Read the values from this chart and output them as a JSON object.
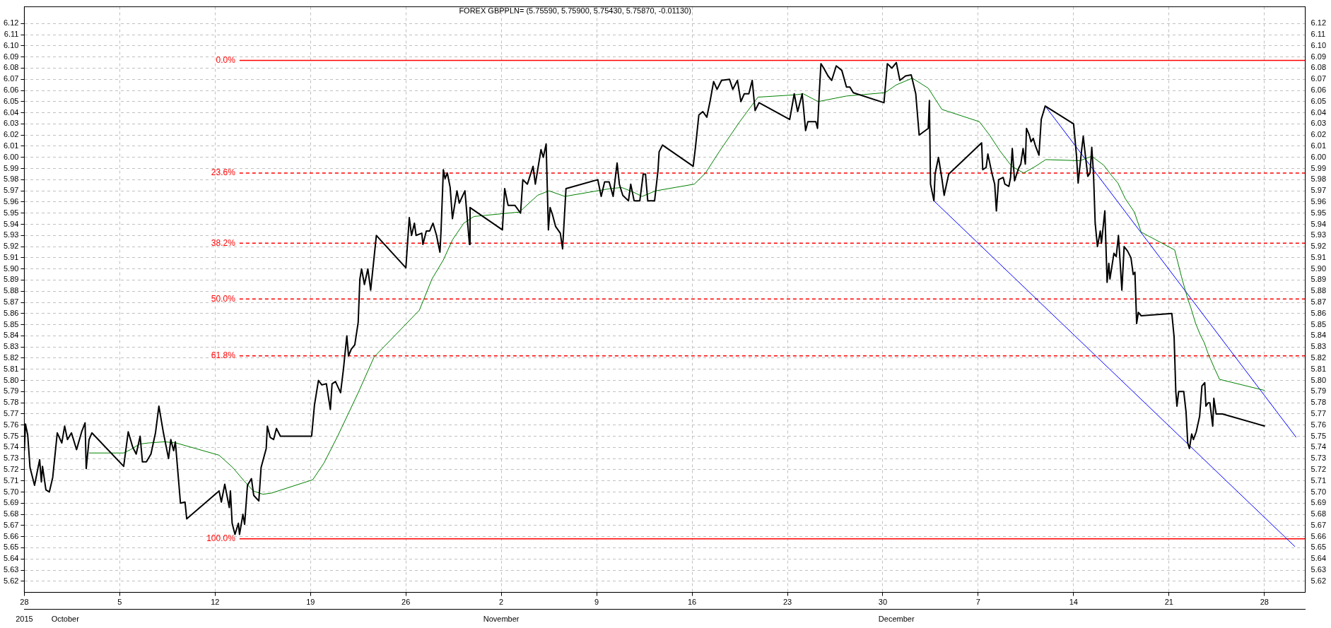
{
  "chart_data": {
    "type": "line",
    "title": "FOREX GBPPLN= (5.75590, 5.75900, 5.75430, 5.75870, -0.01130)",
    "series": [
      {
        "color": "#000000",
        "x": [
          "2015-09-28T00:00",
          "2015-09-28T02:00",
          "2015-09-28T06:00",
          "2015-09-28T10:00",
          "2015-09-28T18:00",
          "2015-09-29T03:00",
          "2015-09-29T06:00",
          "2015-09-29T08:00",
          "2015-09-29T14:00",
          "2015-09-29T20:00",
          "2015-09-30T02:00",
          "2015-09-30T10:00",
          "2015-09-30T18:00",
          "2015-09-30T23:00",
          "2015-10-01T04:00",
          "2015-10-01T11:00",
          "2015-10-01T20:00",
          "2015-10-02T05:00",
          "2015-10-02T11:00",
          "2015-10-02T13:00",
          "2015-10-02T18:00",
          "2015-10-02T23:00",
          "2015-10-05T07:00",
          "2015-10-05T15:00",
          "2015-10-05T23:00",
          "2015-10-06T05:00",
          "2015-10-06T12:00",
          "2015-10-06T16:00",
          "2015-10-06T23:00",
          "2015-10-07T07:00",
          "2015-10-07T15:00",
          "2015-10-07T21:00",
          "2015-10-08T05:00",
          "2015-10-08T14:00",
          "2015-10-08T18:00",
          "2015-10-08T23:00",
          "2015-10-09T02:00",
          "2015-10-09T11:00",
          "2015-10-09T19:00",
          "2015-10-09T22:00",
          "2015-10-12T07:00",
          "2015-10-12T11:00",
          "2015-10-12T17:00",
          "2015-10-13T01:00",
          "2015-10-13T03:00",
          "2015-10-13T06:00",
          "2015-10-13T11:00",
          "2015-10-13T17:00",
          "2015-10-13T19:00",
          "2015-10-14T01:00",
          "2015-10-14T04:00",
          "2015-10-14T09:00",
          "2015-10-14T16:00",
          "2015-10-14T20:00",
          "2015-10-15T05:00",
          "2015-10-15T09:00",
          "2015-10-15T18:00",
          "2015-10-15T20:00",
          "2015-10-16T01:00",
          "2015-10-16T07:00",
          "2015-10-16T12:00",
          "2015-10-16T19:00",
          "2015-10-19T02:00",
          "2015-10-19T07:00",
          "2015-10-19T14:00",
          "2015-10-19T20:00",
          "2015-10-20T04:00",
          "2015-10-20T11:00",
          "2015-10-20T14:00",
          "2015-10-20T20:00",
          "2015-10-21T05:00",
          "2015-10-21T10:00",
          "2015-10-21T16:00",
          "2015-10-21T19:00",
          "2015-10-21T23:45",
          "2015-10-22T06:00",
          "2015-10-22T12:00",
          "2015-10-22T15:00",
          "2015-10-22T18:00",
          "2015-10-22T23:00",
          "2015-10-23T05:00",
          "2015-10-23T10:00",
          "2015-10-23T20:00",
          "2015-10-26T00:00",
          "2015-10-26T06:00",
          "2015-10-26T10:00",
          "2015-10-26T15:00",
          "2015-10-26T18:00",
          "2015-10-27T04:00",
          "2015-10-27T06:00",
          "2015-10-27T12:00",
          "2015-10-27T18:00",
          "2015-10-27T23:45",
          "2015-10-28T06:00",
          "2015-10-28T12:00",
          "2015-10-28T14:00",
          "2015-10-28T18:00",
          "2015-10-28T21:00",
          "2015-10-29T01:00",
          "2015-10-29T06:00",
          "2015-10-29T10:00",
          "2015-10-29T18:00",
          "2015-10-29T22:00",
          "2015-10-30T08:00",
          "2015-10-30T16:00",
          "2015-10-30T17:00",
          "2015-11-02T02:00",
          "2015-11-02T06:00",
          "2015-11-02T12:00",
          "2015-11-03T00:00",
          "2015-11-03T10:00",
          "2015-11-03T14:00",
          "2015-11-03T22:00",
          "2015-11-04T08:00",
          "2015-11-04T12:00",
          "2015-11-04T22:00",
          "2015-11-05T02:00",
          "2015-11-05T07:00",
          "2015-11-05T11:00",
          "2015-11-05T14:00",
          "2015-11-05T18:00",
          "2015-11-05T23:45",
          "2015-11-06T08:00",
          "2015-11-06T12:00",
          "2015-11-06T18:00",
          "2015-11-09T02:00",
          "2015-11-09T08:00",
          "2015-11-09T14:00",
          "2015-11-09T22:00",
          "2015-11-10T05:00",
          "2015-11-10T12:00",
          "2015-11-10T16:00",
          "2015-11-10T22:00",
          "2015-11-11T08:00",
          "2015-11-11T12:00",
          "2015-11-11T18:00",
          "2015-11-12T04:00",
          "2015-11-12T10:00",
          "2015-11-12T14:00",
          "2015-11-12T18:00",
          "2015-11-13T06:00",
          "2015-11-13T12:00",
          "2015-11-13T14:00",
          "2015-11-13T20:00",
          "2015-11-16T02:00",
          "2015-11-16T06:00",
          "2015-11-16T12:00",
          "2015-11-16T19:00",
          "2015-11-17T02:00",
          "2015-11-17T08:00",
          "2015-11-17T14:00",
          "2015-11-17T20:00",
          "2015-11-18T04:00",
          "2015-11-18T18:00",
          "2015-11-18T23:45",
          "2015-11-19T08:00",
          "2015-11-19T14:00",
          "2015-11-19T20:00",
          "2015-11-20T04:00",
          "2015-11-20T10:00",
          "2015-11-20T15:00",
          "2015-11-20T22:00",
          "2015-11-23T04:00",
          "2015-11-23T12:00",
          "2015-11-23T18:00",
          "2015-11-24T02:00",
          "2015-11-24T08:00",
          "2015-11-24T12:00",
          "2015-11-25T02:00",
          "2015-11-25T05:00",
          "2015-11-25T08:00",
          "2015-11-25T11:00",
          "2015-11-25T16:00",
          "2015-11-25T23:30",
          "2015-11-26T06:00",
          "2015-11-26T14:00",
          "2015-11-26T23:45",
          "2015-11-27T08:00",
          "2015-11-27T14:00",
          "2015-11-27T20:00",
          "2015-11-30T02:00",
          "2015-11-30T08:00",
          "2015-11-30T16:00",
          "2015-11-30T23:45",
          "2015-12-01T06:00",
          "2015-12-01T16:00",
          "2015-12-02T02:00",
          "2015-12-02T10:00",
          "2015-12-02T16:00",
          "2015-12-03T08:00",
          "2015-12-03T10:00",
          "2015-12-03T12:00",
          "2015-12-03T18:00",
          "2015-12-03T20:00",
          "2015-12-04T02:00",
          "2015-12-04T08:00",
          "2015-12-04T12:00",
          "2015-12-04T20:00",
          "2015-12-07T06:00",
          "2015-12-07T08:00",
          "2015-12-07T14:00",
          "2015-12-07T17:00",
          "2015-12-08T00:00",
          "2015-12-08T05:00",
          "2015-12-08T08:00",
          "2015-12-08T12:00",
          "2015-12-08T20:00",
          "2015-12-08T23:00",
          "2015-12-09T06:00",
          "2015-12-09T09:00",
          "2015-12-09T12:00",
          "2015-12-09T16:00",
          "2015-12-09T23:00",
          "2015-12-10T03:00",
          "2015-12-10T07:00",
          "2015-12-10T11:00",
          "2015-12-10T13:00",
          "2015-12-10T18:00",
          "2015-12-10T21:00",
          "2015-12-11T01:00",
          "2015-12-11T05:00",
          "2015-12-11T11:00",
          "2015-12-11T15:00",
          "2015-12-11T22:00",
          "2015-12-14T00:00",
          "2015-12-14T05:00",
          "2015-12-14T08:00",
          "2015-12-14T14:00",
          "2015-12-14T17:00",
          "2015-12-14T20:00",
          "2015-12-15T01:00",
          "2015-12-15T05:00",
          "2015-12-15T08:00",
          "2015-12-15T11:00",
          "2015-12-15T14:00",
          "2015-12-15T18:00",
          "2015-12-15T23:00",
          "2015-12-16T01:00",
          "2015-12-16T07:00",
          "2015-12-16T11:00",
          "2015-12-16T14:00",
          "2015-12-16T16:00",
          "2015-12-16T23:00",
          "2015-12-17T03:00",
          "2015-12-17T07:00",
          "2015-12-17T13:00",
          "2015-12-17T17:00",
          "2015-12-17T23:00",
          "2015-12-18T05:00",
          "2015-12-18T09:00",
          "2015-12-18T12:00",
          "2015-12-18T14:00",
          "2015-12-18T15:00",
          "2015-12-18T18:00",
          "2015-12-18T23:00",
          "2015-12-21T05:00",
          "2015-12-21T09:00",
          "2015-12-21T12:00",
          "2015-12-21T14:00",
          "2015-12-21T17:00",
          "2015-12-22T02:00",
          "2015-12-22T06:00",
          "2015-12-22T09:00",
          "2015-12-22T12:00",
          "2015-12-22T16:00",
          "2015-12-22T19:00",
          "2015-12-23T00:00",
          "2015-12-23T06:00",
          "2015-12-23T10:00",
          "2015-12-23T15:00",
          "2015-12-23T17:00",
          "2015-12-23T21:00",
          "2015-12-24T00:00",
          "2015-12-24T05:00",
          "2015-12-24T07:00",
          "2015-12-24T11:00",
          "2015-12-24T22:00",
          "2015-12-28T01:00"
        ],
        "values": [
          5.737,
          5.761,
          5.751,
          5.722,
          5.706,
          5.729,
          5.709,
          5.723,
          5.702,
          5.7,
          5.713,
          5.753,
          5.744,
          5.759,
          5.747,
          5.753,
          5.738,
          5.754,
          5.762,
          5.721,
          5.747,
          5.753,
          5.723,
          5.754,
          5.74,
          5.734,
          5.75,
          5.727,
          5.727,
          5.734,
          5.753,
          5.777,
          5.753,
          5.73,
          5.747,
          5.737,
          5.745,
          5.69,
          5.691,
          5.676,
          5.701,
          5.691,
          5.707,
          5.686,
          5.701,
          5.672,
          5.662,
          5.672,
          5.662,
          5.68,
          5.671,
          5.706,
          5.712,
          5.697,
          5.692,
          5.722,
          5.739,
          5.759,
          5.749,
          5.747,
          5.757,
          5.75,
          5.75,
          5.778,
          5.8,
          5.796,
          5.797,
          5.774,
          5.797,
          5.799,
          5.789,
          5.81,
          5.84,
          5.822,
          5.828,
          5.832,
          5.852,
          5.891,
          5.9,
          5.886,
          5.9,
          5.881,
          5.93,
          5.901,
          5.946,
          5.93,
          5.941,
          5.93,
          5.932,
          5.922,
          5.934,
          5.934,
          5.941,
          5.93,
          5.915,
          5.935,
          5.989,
          5.981,
          5.986,
          5.973,
          5.945,
          5.97,
          5.959,
          5.97,
          5.922,
          5.955,
          5.935,
          5.972,
          5.957,
          5.957,
          5.95,
          5.98,
          5.976,
          5.992,
          5.976,
          6.007,
          6,
          6.012,
          5.935,
          5.955,
          5.949,
          5.938,
          5.932,
          5.918,
          5.972,
          5.98,
          5.965,
          5.978,
          5.978,
          5.965,
          5.995,
          5.976,
          5.966,
          5.961,
          5.976,
          5.961,
          5.961,
          5.985,
          5.985,
          5.961,
          5.961,
          5.988,
          6.005,
          6.011,
          5.992,
          6.009,
          6.038,
          6.041,
          6.036,
          6.051,
          6.068,
          6.061,
          6.069,
          6.07,
          6.061,
          6.069,
          6.05,
          6.057,
          6.057,
          6.069,
          6.042,
          6.049,
          6.034,
          6.057,
          6.041,
          6.057,
          6.024,
          6.032,
          6.032,
          6.026,
          6.057,
          6.084,
          6.08,
          6.073,
          6.069,
          6.082,
          6.078,
          6.063,
          6.063,
          6.058,
          6.049,
          6.084,
          6.08,
          6.085,
          6.069,
          6.073,
          6.074,
          6.057,
          6.02,
          6.026,
          6.051,
          5.976,
          5.961,
          5.985,
          6,
          5.981,
          5.966,
          5.985,
          6.013,
          5.989,
          5.991,
          6.003,
          5.986,
          5.976,
          5.952,
          5.98,
          5.982,
          5.976,
          5.974,
          5.982,
          6.008,
          5.979,
          5.99,
          5.994,
          6.008,
          5.994,
          6.026,
          6.02,
          6.014,
          6.017,
          6.01,
          6.002,
          6.034,
          6.046,
          6.03,
          6.002,
          5.977,
          6.006,
          6.019,
          6.005,
          5.983,
          5.986,
          6.009,
          5.986,
          5.941,
          5.92,
          5.934,
          5.923,
          5.952,
          5.888,
          5.905,
          5.891,
          5.914,
          5.911,
          5.93,
          5.881,
          5.92,
          5.916,
          5.91,
          5.895,
          5.897,
          5.867,
          5.851,
          5.861,
          5.858,
          5.86,
          5.839,
          5.79,
          5.777,
          5.79,
          5.79,
          5.772,
          5.744,
          5.739,
          5.752,
          5.747,
          5.754,
          5.768,
          5.795,
          5.798,
          5.777,
          5.78,
          5.78,
          5.759,
          5.784,
          5.77,
          5.77,
          5.759
        ]
      },
      {
        "color": "#008000",
        "x": [
          "2015-10-02T18:00",
          "2015-10-05T07:00",
          "2015-10-05T19:00",
          "2015-10-06T11:00",
          "2015-10-07T03:00",
          "2015-10-08T07:00",
          "2015-10-09T03:00",
          "2015-10-12T07:00",
          "2015-10-13T07:00",
          "2015-10-14T03:00",
          "2015-10-14T19:00",
          "2015-10-15T12:00",
          "2015-10-16T03:00",
          "2015-10-19T04:00",
          "2015-10-19T23:45",
          "2015-10-20T23:45",
          "2015-10-22T12:00",
          "2015-10-23T16:00",
          "2015-10-26T23:45",
          "2015-10-27T22:00",
          "2015-10-28T18:00",
          "2015-10-29T10:00",
          "2015-10-30T06:00",
          "2015-10-30T23:45",
          "2015-11-03T08:00",
          "2015-11-04T16:00",
          "2015-11-05T12:00",
          "2015-11-06T16:00",
          "2015-11-09T23:45",
          "2015-11-10T20:00",
          "2015-11-11T16:00",
          "2015-11-12T08:00",
          "2015-11-13T08:00",
          "2015-11-16T04:00",
          "2015-11-16T23:45",
          "2015-11-17T23:45",
          "2015-11-19T12:00",
          "2015-11-20T20:00",
          "2015-11-23T12:00",
          "2015-11-24T04:00",
          "2015-11-25T06:00",
          "2015-11-26T12:00",
          "2015-11-27T08:00",
          "2015-11-30T04:00",
          "2015-11-30T23:45",
          "2015-12-02T04:00",
          "2015-12-03T08:00",
          "2015-12-04T08:00",
          "2015-12-07T02:00",
          "2015-12-07T20:00",
          "2015-12-08T14:00",
          "2015-12-09T11:00",
          "2015-12-10T08:00",
          "2015-12-11T05:00",
          "2015-12-11T23:00",
          "2015-12-14T11:00",
          "2015-12-15T08:00",
          "2015-12-16T05:00",
          "2015-12-16T20:00",
          "2015-12-17T06:00",
          "2015-12-17T19:00",
          "2015-12-18T11:00",
          "2015-12-18T23:00",
          "2015-12-21T10:00",
          "2015-12-21T22:00",
          "2015-12-22T09:00",
          "2015-12-22T14:00",
          "2015-12-22T23:00",
          "2015-12-23T07:00",
          "2015-12-23T14:00",
          "2015-12-23T21:00",
          "2015-12-24T08:00",
          "2015-12-24T17:00",
          "2015-12-28T01:00"
        ],
        "values": [
          5.735,
          5.735,
          5.738,
          5.743,
          5.744,
          5.745,
          5.744,
          5.733,
          5.722,
          5.71,
          5.701,
          5.698,
          5.699,
          5.711,
          5.726,
          5.75,
          5.789,
          5.821,
          5.863,
          5.891,
          5.908,
          5.926,
          5.941,
          5.947,
          5.951,
          5.966,
          5.97,
          5.965,
          5.972,
          5.973,
          5.969,
          5.965,
          5.97,
          5.976,
          5.986,
          6.005,
          6.032,
          6.054,
          6.056,
          6.057,
          6.05,
          6.053,
          6.055,
          6.058,
          6.065,
          6.071,
          6.062,
          6.043,
          6.032,
          6.02,
          6.006,
          5.992,
          5.986,
          5.992,
          5.998,
          5.997,
          6.001,
          5.993,
          5.983,
          5.977,
          5.963,
          5.951,
          5.933,
          5.917,
          5.893,
          5.873,
          5.866,
          5.851,
          5.841,
          5.834,
          5.824,
          5.811,
          5.801,
          5.791
        ]
      },
      {
        "color": "#0000ff",
        "x": [
          "2015-12-11T22:00",
          "2015-12-30T08:00"
        ],
        "values": [
          6.046,
          5.749
        ]
      },
      {
        "color": "#0000ff",
        "x": [
          "2015-12-03T18:00",
          "2015-12-30T06:00"
        ],
        "values": [
          5.961,
          5.651
        ]
      }
    ],
    "xlim": [
      "2015-09-28",
      "2015-12-31"
    ],
    "xticks": [
      {
        "value": "2015-09-28",
        "label": "28"
      },
      {
        "value": "2015-10-05",
        "label": "5"
      },
      {
        "value": "2015-10-12",
        "label": "12"
      },
      {
        "value": "2015-10-19",
        "label": "19"
      },
      {
        "value": "2015-10-26",
        "label": "26"
      },
      {
        "value": "2015-11-02",
        "label": "2"
      },
      {
        "value": "2015-11-09",
        "label": "9"
      },
      {
        "value": "2015-11-16",
        "label": "16"
      },
      {
        "value": "2015-11-23",
        "label": "23"
      },
      {
        "value": "2015-11-30",
        "label": "30"
      },
      {
        "value": "2015-12-07",
        "label": "7"
      },
      {
        "value": "2015-12-14",
        "label": "14"
      },
      {
        "value": "2015-12-21",
        "label": "21"
      },
      {
        "value": "2015-12-28",
        "label": "28"
      }
    ],
    "x2lim": [
      "2015-09-28",
      "2015-12-31"
    ],
    "x2ticks": [
      {
        "value": "2015-09-28",
        "label": "2015"
      },
      {
        "value": "2015-10-01",
        "label": "October"
      },
      {
        "value": "2015-11-02",
        "label": "November"
      },
      {
        "value": "2015-12-01",
        "label": "December"
      }
    ],
    "ylim": [
      5.61,
      6.135
    ],
    "yticks": [
      5.62,
      5.63,
      5.64,
      5.65,
      5.66,
      5.67,
      5.68,
      5.69,
      {
        "value": 5.7,
        "label": "5.70"
      },
      5.71,
      5.72,
      5.73,
      5.74,
      5.75,
      5.76,
      5.77,
      5.78,
      5.79,
      {
        "value": 5.8,
        "label": "5.80"
      },
      5.81,
      5.82,
      5.83,
      5.84,
      5.85,
      5.86,
      5.87,
      5.88,
      5.89,
      {
        "value": 5.9,
        "label": "5.90"
      },
      5.91,
      5.92,
      5.93,
      5.94,
      5.95,
      5.96,
      5.97,
      5.98,
      5.99,
      {
        "value": 6,
        "label": "6.00"
      },
      6.01,
      6.02,
      6.03,
      6.04,
      6.05,
      6.06,
      6.07,
      6.08,
      6.09,
      {
        "value": 6.1,
        "label": "6.10"
      },
      6.11,
      6.12
    ],
    "y2lim": [
      5.61,
      6.135
    ],
    "y2ticks": [
      5.62,
      5.63,
      5.64,
      5.65,
      5.66,
      5.67,
      5.68,
      5.69,
      {
        "value": 5.7,
        "label": "5.70"
      },
      5.71,
      5.72,
      5.73,
      5.74,
      5.75,
      5.76,
      5.77,
      5.78,
      5.79,
      {
        "value": 5.8,
        "label": "5.80"
      },
      5.81,
      5.82,
      5.83,
      5.84,
      5.85,
      5.86,
      5.87,
      5.88,
      5.89,
      {
        "value": 5.9,
        "label": "5.90"
      },
      5.91,
      5.92,
      5.93,
      5.94,
      5.95,
      5.96,
      5.97,
      5.98,
      5.99,
      {
        "value": 6,
        "label": "6.00"
      },
      6.01,
      6.02,
      6.03,
      6.04,
      6.05,
      6.06,
      6.07,
      6.08,
      6.09,
      {
        "value": 6.1,
        "label": "6.10"
      },
      6.11,
      6.12
    ],
    "ref_lines": [
      {
        "axis": "y",
        "value": 6.087,
        "color": "#ff0000",
        "line_style": "solid"
      },
      {
        "axis": "y",
        "value": 5.986,
        "color": "#ff0000",
        "line_style": "dashed"
      },
      {
        "axis": "y",
        "value": 5.923,
        "color": "#ff0000",
        "line_style": "dashed"
      },
      {
        "axis": "y",
        "value": 5.873,
        "color": "#ff0000",
        "line_style": "dashed"
      },
      {
        "axis": "y",
        "value": 5.822,
        "color": "#ff0000",
        "line_style": "dashed"
      },
      {
        "axis": "y",
        "value": 5.658,
        "color": "#ff0000",
        "line_style": "solid"
      }
    ],
    "annotations": [
      "0.0%",
      "23.6%",
      "38.2%",
      "50.0%",
      "61.8%",
      "100.0%"
    ],
    "grid": true,
    "legend": false,
    "marker": "none",
    "line_style": "solid"
  }
}
